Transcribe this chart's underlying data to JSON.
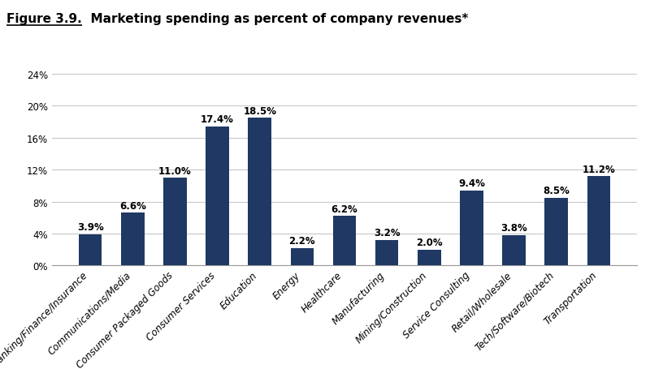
{
  "title_prefix": "Figure 3.9.",
  "title_rest": "  Marketing spending as percent of company revenues*",
  "categories": [
    "Banking/Finance/Insurance",
    "Communications/Media",
    "Consumer Packaged Goods",
    "Consumer Services",
    "Education",
    "Energy",
    "Healthcare",
    "Manufacturing",
    "Mining/Construction",
    "Service Consulting",
    "Retail/Wholesale",
    "Tech/Software/Biotech",
    "Transportation"
  ],
  "values": [
    3.9,
    6.6,
    11.0,
    17.4,
    18.5,
    2.2,
    6.2,
    3.2,
    2.0,
    9.4,
    3.8,
    8.5,
    11.2
  ],
  "bar_color": "#1F3864",
  "ylim": [
    0,
    25
  ],
  "yticks": [
    0,
    4,
    8,
    12,
    16,
    20,
    24
  ],
  "ytick_labels": [
    "0%",
    "4%",
    "8%",
    "12%",
    "16%",
    "20%",
    "24%"
  ],
  "background_color": "#ffffff",
  "title_fontsize": 11,
  "value_label_fontsize": 8.5,
  "tick_fontsize": 8.5,
  "grid_color": "#c8c8c8",
  "text_color": "#000000"
}
